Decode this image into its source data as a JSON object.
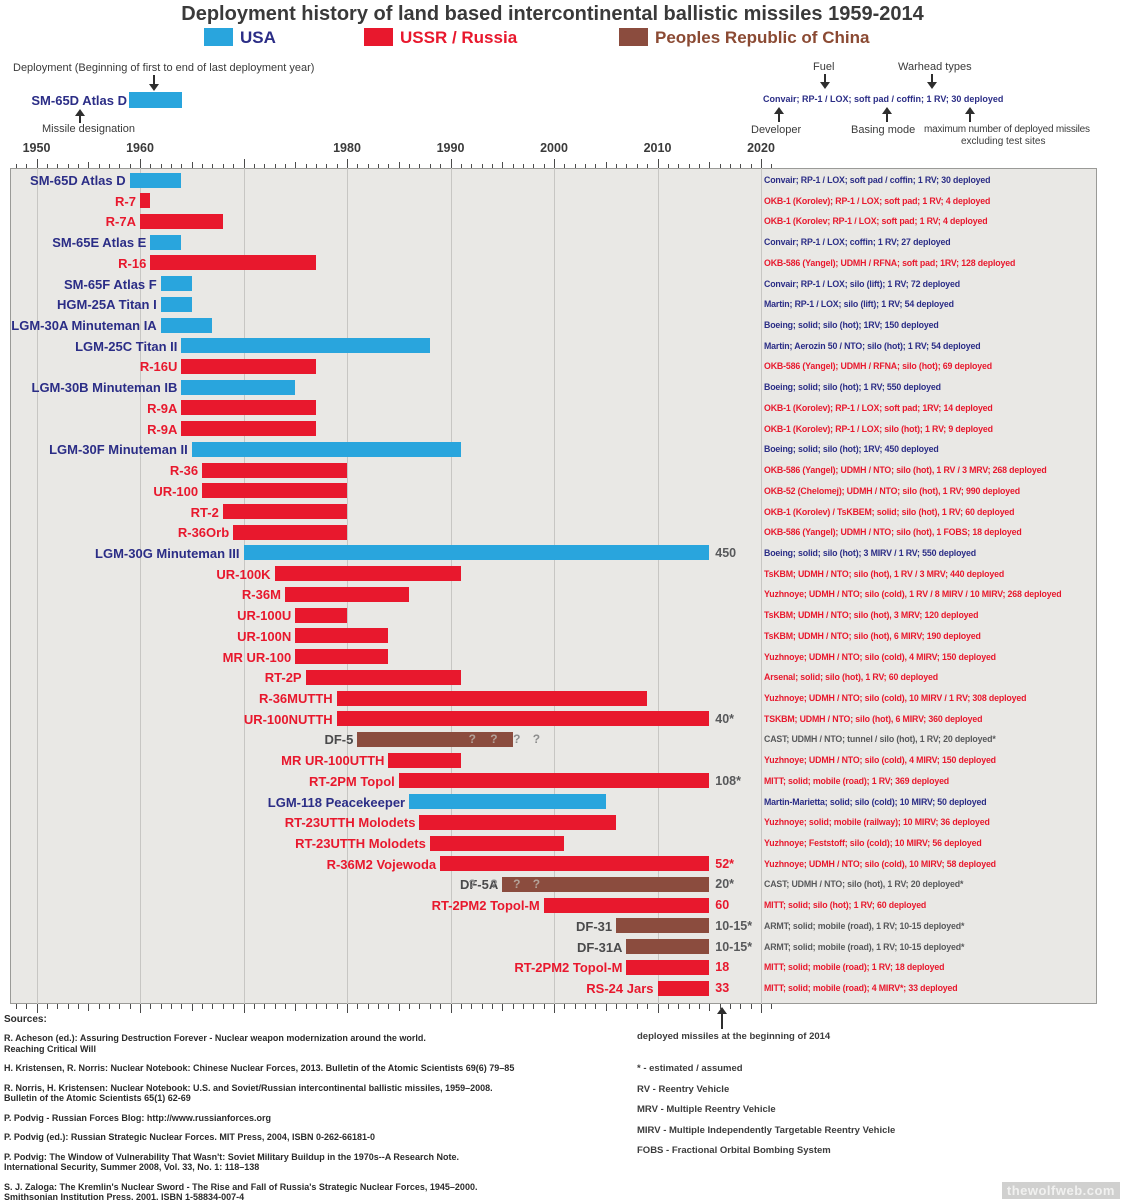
{
  "title": "Deployment history of land based intercontinental ballistic missiles 1959-2014",
  "legend": [
    {
      "label": "USA",
      "color": "#29a5dd",
      "text_color": "#2b2d86"
    },
    {
      "label": "USSR / Russia",
      "color": "#e8182d",
      "text_color": "#e8182d"
    },
    {
      "label": "Peoples Republic of China",
      "color": "#8b4c3e",
      "text_color": "#8b4a33"
    }
  ],
  "header_explainer": {
    "deployment_note": "Deployment (Beginning of first to end of last deployment year)",
    "example_missile": "SM-65D Atlas D",
    "missile_designation": "Missile designation",
    "fuel": "Fuel",
    "warhead_types": "Warhead types",
    "sample_annotation": "Convair; RP-1 / LOX; soft pad / coffin; 1 RV; 30 deployed",
    "developer": "Developer",
    "basing_mode": "Basing mode",
    "max_note_line1": "maximum number of  deployed missiles",
    "max_note_line2": "excluding test sites"
  },
  "chart_data": {
    "type": "bar",
    "subtype": "gantt-timeline",
    "xlabel": "year",
    "xlim": [
      1950,
      2020
    ],
    "grid": true,
    "colors": {
      "usa": {
        "bar": "#29a5dd",
        "label": "#2b2d86",
        "annotation": "#2b2d86"
      },
      "ussr": {
        "bar": "#e8182d",
        "label": "#e8182d",
        "annotation": "#e8182d"
      },
      "china": {
        "bar": "#8b4c3e",
        "label": "#4a4a4b",
        "annotation": "#58595b"
      },
      "value_red": "#e8182d",
      "value_gray": "#58595b",
      "qmark_on_bar": "#b3a198",
      "qmark_off_bar": "#8d8d8d"
    },
    "axis": {
      "gridline_years": [
        1950,
        1960,
        1970,
        1980,
        1990,
        2000,
        2010,
        2020
      ],
      "decade_labels": [
        {
          "label": "1950",
          "year": 1950
        },
        {
          "label": "1960",
          "year": 1960
        },
        {
          "label": "1980",
          "year": 1980
        },
        {
          "label": "1990",
          "year": 1990
        },
        {
          "label": "2000",
          "year": 2000
        },
        {
          "label": "2010",
          "year": 2010
        },
        {
          "label": "2020",
          "year": 2020
        }
      ]
    },
    "rows": [
      {
        "name": "SM-65D Atlas D",
        "country": "usa",
        "start": 1959,
        "end": 1964,
        "annotation": "Convair; RP-1 / LOX; soft pad / coffin; 1 RV; 30 deployed"
      },
      {
        "name": "R-7",
        "country": "ussr",
        "start": 1960,
        "end": 1961,
        "annotation": "OKB-1 (Korolev); RP-1 / LOX; soft pad; 1 RV; 4 deployed"
      },
      {
        "name": "R-7A",
        "country": "ussr",
        "start": 1960,
        "end": 1968,
        "annotation": "OKB-1 (Korolev; RP-1 / LOX; soft pad; 1 RV; 4 deployed"
      },
      {
        "name": "SM-65E Atlas E",
        "country": "usa",
        "start": 1961,
        "end": 1964,
        "annotation": "Convair; RP-1 / LOX; coffin; 1 RV; 27 deployed"
      },
      {
        "name": "R-16",
        "country": "ussr",
        "start": 1961,
        "end": 1977,
        "annotation": "OKB-586 (Yangel); UDMH / RFNA; soft pad; 1RV; 128 deployed"
      },
      {
        "name": "SM-65F Atlas F",
        "country": "usa",
        "start": 1962,
        "end": 1965,
        "annotation": "Convair; RP-1 / LOX; silo (lift); 1 RV; 72 deployed"
      },
      {
        "name": "HGM-25A Titan I",
        "country": "usa",
        "start": 1962,
        "end": 1965,
        "annotation": "Martin; RP-1 / LOX; silo (lift); 1 RV; 54 deployed"
      },
      {
        "name": "LGM-30A Minuteman IA",
        "country": "usa",
        "start": 1962,
        "end": 1967,
        "annotation": "Boeing; solid; silo (hot); 1RV; 150 deployed"
      },
      {
        "name": "LGM-25C Titan II",
        "country": "usa",
        "start": 1964,
        "end": 1988,
        "annotation": "Martin; Aerozin 50 / NTO; silo (hot); 1 RV; 54 deployed"
      },
      {
        "name": "R-16U",
        "country": "ussr",
        "start": 1964,
        "end": 1977,
        "annotation": "OKB-586 (Yangel); UDMH / RFNA; silo (hot); 69 deployed"
      },
      {
        "name": "LGM-30B Minuteman IB",
        "country": "usa",
        "start": 1964,
        "end": 1975,
        "annotation": "Boeing; solid; silo (hot); 1 RV; 550 deployed"
      },
      {
        "name": "R-9A",
        "country": "ussr",
        "start": 1964,
        "end": 1977,
        "annotation": "OKB-1 (Korolev); RP-1 / LOX; soft pad; 1RV; 14 deployed"
      },
      {
        "name": "R-9A",
        "country": "ussr",
        "start": 1964,
        "end": 1977,
        "annotation": "OKB-1 (Korolev); RP-1 / LOX; silo (hot); 1 RV; 9 deployed"
      },
      {
        "name": "LGM-30F Minuteman II",
        "country": "usa",
        "start": 1965,
        "end": 1991,
        "annotation": "Boeing; solid; silo (hot); 1RV; 450 deployed"
      },
      {
        "name": "R-36",
        "country": "ussr",
        "start": 1966,
        "end": 1980,
        "annotation": "OKB-586 (Yangel); UDMH / NTO; silo (hot), 1 RV / 3 MRV; 268 deployed"
      },
      {
        "name": "UR-100",
        "country": "ussr",
        "start": 1966,
        "end": 1980,
        "annotation": "OKB-52 (Chelomej); UDMH / NTO; silo (hot), 1 RV; 990 deployed"
      },
      {
        "name": "RT-2",
        "country": "ussr",
        "start": 1968,
        "end": 1980,
        "annotation": "OKB-1 (Korolev) / TsKBEM; solid; silo (hot), 1 RV; 60 deployed"
      },
      {
        "name": "R-36Orb",
        "country": "ussr",
        "start": 1969,
        "end": 1980,
        "annotation": "OKB-586 (Yangel); UDMH / NTO; silo (hot), 1 FOBS; 18 deployed"
      },
      {
        "name": "LGM-30G Minuteman III",
        "country": "usa",
        "start": 1970,
        "end": 2015,
        "value": "450",
        "value_style": "gray",
        "annotation": "Boeing; solid; silo (hot); 3 MIRV / 1 RV; 550 deployed"
      },
      {
        "name": "UR-100K",
        "country": "ussr",
        "start": 1973,
        "end": 1991,
        "annotation": "TsKBM; UDMH / NTO; silo (hot), 1 RV / 3 MRV; 440 deployed"
      },
      {
        "name": "R-36M",
        "country": "ussr",
        "start": 1974,
        "end": 1986,
        "annotation": "Yuzhnoye; UDMH / NTO; silo (cold), 1 RV / 8 MIRV / 10 MIRV; 268 deployed"
      },
      {
        "name": "UR-100U",
        "country": "ussr",
        "start": 1975,
        "end": 1980,
        "annotation": "TsKBM; UDMH / NTO; silo (hot), 3 MRV; 120 deployed"
      },
      {
        "name": "UR-100N",
        "country": "ussr",
        "start": 1975,
        "end": 1984,
        "annotation": "TsKBM; UDMH / NTO; silo (hot), 6 MIRV; 190 deployed"
      },
      {
        "name": "MR UR-100",
        "country": "ussr",
        "start": 1975,
        "end": 1984,
        "annotation": "Yuzhnoye; UDMH / NTO; silo (cold), 4 MIRV; 150 deployed"
      },
      {
        "name": "RT-2P",
        "country": "ussr",
        "start": 1976,
        "end": 1991,
        "annotation": "Arsenal; solid; silo (hot), 1 RV; 60 deployed"
      },
      {
        "name": "R-36MUTTH",
        "country": "ussr",
        "start": 1979,
        "end": 2009,
        "annotation": "Yuzhnoye; UDMH / NTO; silo (cold), 10 MIRV / 1 RV; 308 deployed"
      },
      {
        "name": "UR-100NUTTH",
        "country": "ussr",
        "start": 1979,
        "end": 2015,
        "value": "40*",
        "value_style": "gray",
        "annotation": "TSKBM; UDMH / NTO; silo (hot), 6 MIRV; 360 deployed"
      },
      {
        "name": "DF-5",
        "country": "china",
        "start": 1981,
        "end": 1996,
        "annotation": "CAST; UDMH / NTO; tunnel / silo (hot), 1 RV; 20 deployed*",
        "notes": [
          {
            "t": "?",
            "y": 1992.1,
            "on": true
          },
          {
            "t": "?",
            "y": 1994.2,
            "on": true
          },
          {
            "t": "?",
            "y": 1996.4,
            "on": false
          },
          {
            "t": "?",
            "y": 1998.3,
            "on": false
          }
        ]
      },
      {
        "name": "MR UR-100UTTH",
        "country": "ussr",
        "start": 1984,
        "end": 1991,
        "annotation": "Yuzhnoye; UDMH / NTO; silo (cold), 4 MIRV; 150 deployed"
      },
      {
        "name": "RT-2PM Topol",
        "country": "ussr",
        "start": 1985,
        "end": 2015,
        "value": "108*",
        "value_style": "gray",
        "annotation": "MITT; solid; mobile (road); 1 RV; 369 deployed"
      },
      {
        "name": "LGM-118 Peacekeeper",
        "country": "usa",
        "start": 1986,
        "end": 2005,
        "annotation": "Martin-Marietta; solid; silo (cold); 10 MIRV; 50 deployed"
      },
      {
        "name": "RT-23UTTH Molodets",
        "country": "ussr",
        "start": 1987,
        "end": 2006,
        "annotation": "Yuzhnoye; solid; mobile (railway); 10 MIRV; 36 deployed"
      },
      {
        "name": "RT-23UTTH Molodets",
        "country": "ussr",
        "start": 1988,
        "end": 2001,
        "annotation": "Yuzhnoye; Feststoff; silo (cold); 10 MIRV; 56 deployed"
      },
      {
        "name": "R-36M2 Vojewoda",
        "country": "ussr",
        "start": 1989,
        "end": 2015,
        "value": "52*",
        "value_style": "red",
        "annotation": "Yuzhnoye; UDMH / NTO; silo (cold), 10 MIRV; 58 deployed"
      },
      {
        "name": "DF-5A",
        "country": "china",
        "start": 1995,
        "end": 2015,
        "value": "20*",
        "value_style": "gray",
        "annotation": "CAST; UDMH / NTO; silo (hot), 1 RV; 20 deployed*",
        "notes": [
          {
            "t": "?",
            "y": 1992.1,
            "on": false
          },
          {
            "t": "?",
            "y": 1994.2,
            "on": false
          },
          {
            "t": "?",
            "y": 1996.4,
            "on": true
          },
          {
            "t": "?",
            "y": 1998.3,
            "on": true
          }
        ]
      },
      {
        "name": "RT-2PM2 Topol-M",
        "country": "ussr",
        "start": 1999,
        "end": 2015,
        "value": "60",
        "value_style": "red",
        "annotation": "MITT; solid; silo (hot); 1 RV; 60 deployed"
      },
      {
        "name": "DF-31",
        "country": "china",
        "start": 2006,
        "end": 2015,
        "value": "10-15*",
        "value_style": "gray",
        "annotation": "ARMT; solid; mobile (road), 1 RV; 10-15 deployed*"
      },
      {
        "name": "DF-31A",
        "country": "china",
        "start": 2007,
        "end": 2015,
        "value": "10-15*",
        "value_style": "gray",
        "annotation": "ARMT; solid; mobile (road), 1 RV; 10-15 deployed*"
      },
      {
        "name": "RT-2PM2 Topol-M",
        "country": "ussr",
        "start": 2007,
        "end": 2015,
        "value": "18",
        "value_style": "red",
        "annotation": "MITT; solid; mobile (road); 1 RV; 18 deployed"
      },
      {
        "name": "RS-24 Jars",
        "country": "ussr",
        "start": 2010,
        "end": 2015,
        "value": "33",
        "value_style": "red",
        "annotation": "MITT; solid; mobile (road); 4 MIRV*; 33 deployed"
      }
    ]
  },
  "footnotes": {
    "deployed_note": "deployed missiles at the beginning of 2014",
    "items": [
      "* - estimated / assumed",
      "RV - Reentry Vehicle",
      "MRV - Multiple Reentry Vehicle",
      "MIRV - Multiple Independently Targetable Reentry Vehicle",
      "FOBS - Fractional Orbital Bombing System"
    ]
  },
  "sources": {
    "heading": "Sources:",
    "entries": [
      [
        "R. Acheson (ed.): Assuring Destruction Forever - Nuclear weapon modernization around the world.",
        "Reaching Critical Will"
      ],
      [
        "H. Kristensen, R. Norris: Nuclear Notebook: Chinese Nuclear Forces, 2013. Bulletin of the Atomic Scientists 69(6) 79–85"
      ],
      [
        "R. Norris, H. Kristensen:  Nuclear Notebook: U.S. and Soviet/Russian intercontinental ballistic missiles, 1959–2008.",
        "Bulletin of the Atomic Scientists 65(1) 62-69"
      ],
      [
        "P. Podvig - Russian Forces Blog: http://www.russianforces.org"
      ],
      [
        "P. Podvig (ed.): Russian Strategic Nuclear Forces. MIT Press, 2004, ISBN 0-262-66181-0"
      ],
      [
        "P. Podvig: The Window of Vulnerability That Wasn't: Soviet Military Buildup in the 1970s--A Research Note.",
        "International Security, Summer 2008, Vol. 33, No. 1: 118–138"
      ],
      [
        "S. J. Zaloga: The Kremlin's Nuclear Sword - The Rise and Fall of Russia's Strategic Nuclear Forces, 1945–2000.",
        "Smithsonian Institution Press, 2001, ISBN 1-58834-007-4"
      ]
    ]
  },
  "watermark": "thewolfweb.com"
}
